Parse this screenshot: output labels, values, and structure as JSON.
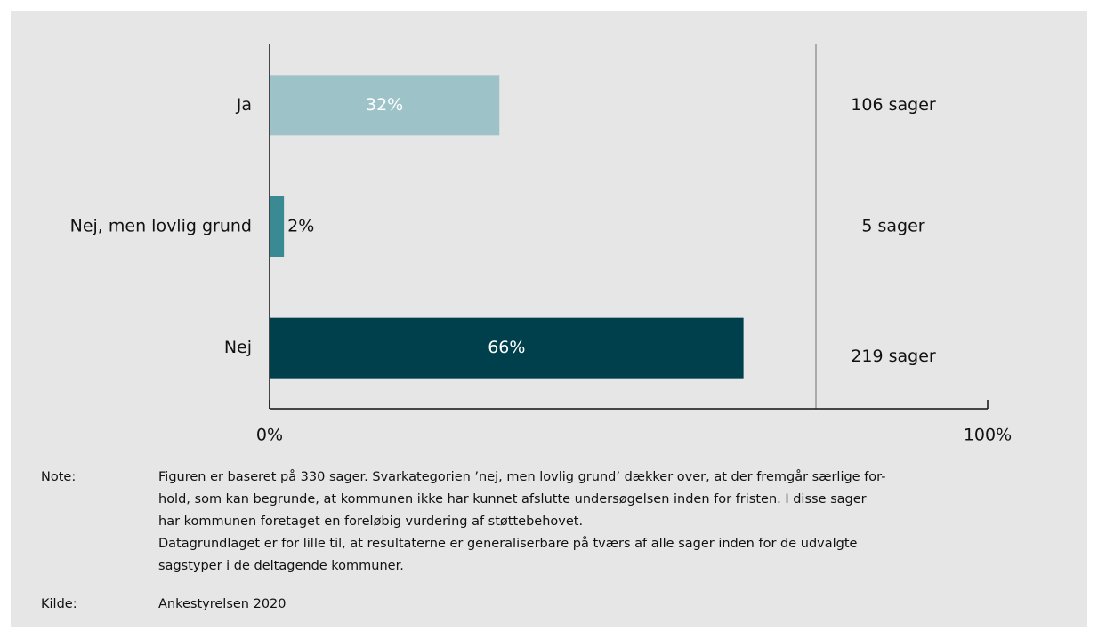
{
  "chart_data": {
    "type": "hbar",
    "categories": [
      "Ja",
      "Nej, men lovlig grund",
      "Nej"
    ],
    "values": [
      32,
      2,
      66
    ],
    "value_labels": [
      "32%",
      "2%",
      "66%"
    ],
    "colors": [
      "#9dc3c9",
      "#3a8a94",
      "#003f4c"
    ],
    "case_labels": [
      "106 sager",
      "5 sager",
      "219 sager"
    ],
    "xlim": [
      0,
      100
    ],
    "xticks": [
      {
        "value": 0,
        "label": "0%"
      },
      {
        "value": 100,
        "label": "100%"
      }
    ]
  },
  "note": {
    "label": "Note:",
    "lines": [
      "Figuren er baseret på 330 sager. Svarkategorien ’nej, men lovlig grund’ dækker over, at der fremgår særlige for-",
      "hold, som kan begrunde, at kommunen ikke har kunnet afslutte undersøgelsen inden for fristen. I disse sager",
      "har kommunen foretaget en foreløbig vurdering af støttebehovet.",
      "Datagrundlaget er for lille til, at resultaterne er generaliserbare på tværs af alle sager inden for de udvalgte",
      "sagstyper i de deltagende kommuner."
    ]
  },
  "source": {
    "label": "Kilde:",
    "text": "Ankestyrelsen 2020"
  }
}
